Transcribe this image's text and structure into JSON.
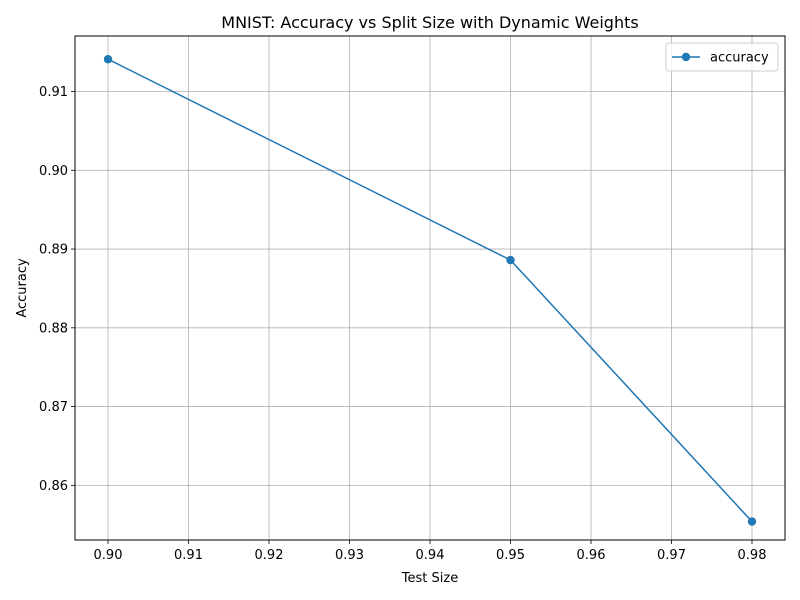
{
  "chart_data": {
    "type": "line",
    "title": "MNIST: Accuracy vs Split Size with Dynamic Weights",
    "xlabel": "Test Size",
    "ylabel": "Accuracy",
    "xlim": [
      0.8959,
      0.9841
    ],
    "ylim": [
      0.85306,
      0.91705
    ],
    "xticks": [
      "0.90",
      "0.91",
      "0.92",
      "0.93",
      "0.94",
      "0.95",
      "0.96",
      "0.97",
      "0.98"
    ],
    "yticks": [
      "0.86",
      "0.87",
      "0.88",
      "0.89",
      "0.90",
      "0.91"
    ],
    "grid": true,
    "legend_position": "top-right",
    "series": [
      {
        "name": "accuracy",
        "color": "#1f77b4",
        "marker": "circle",
        "x": [
          0.9,
          0.95,
          0.98
        ],
        "y": [
          0.9141,
          0.8886,
          0.8554
        ]
      }
    ]
  }
}
